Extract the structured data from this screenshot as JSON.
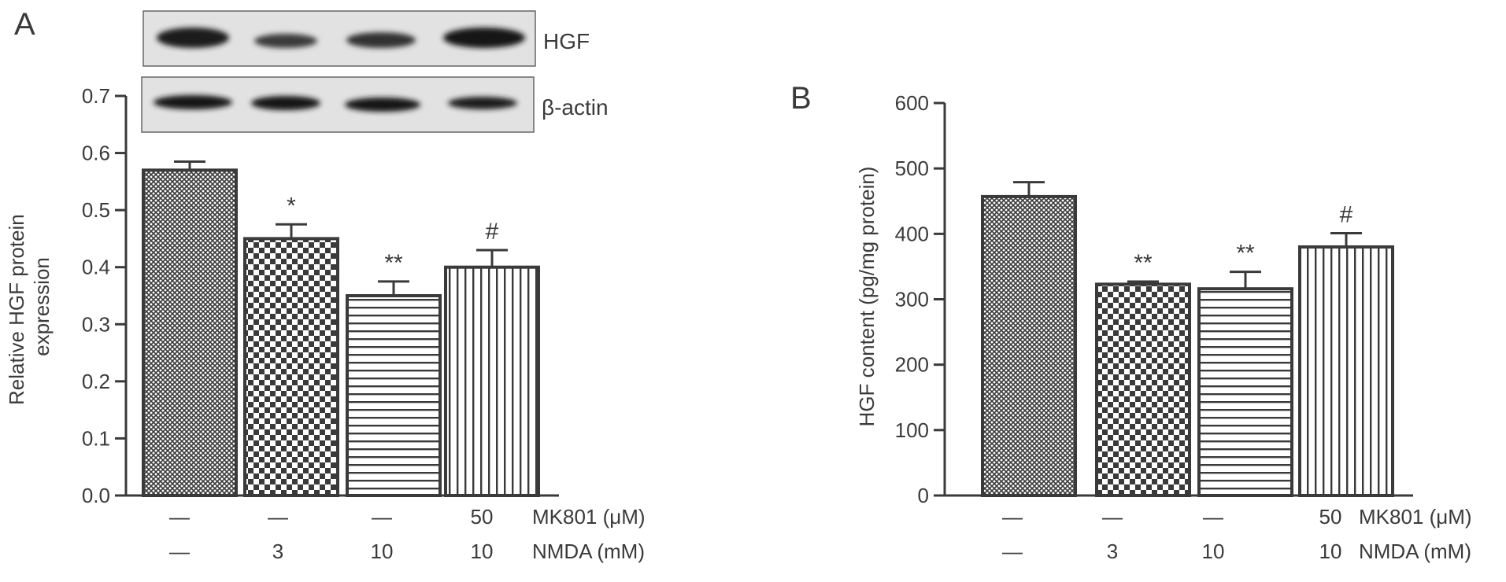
{
  "chart_data": [
    {
      "panel": "A",
      "type": "bar",
      "ylabel_lines": [
        "Relative HGF protein",
        "expression"
      ],
      "ylim": [
        0,
        0.7
      ],
      "yticks": [
        0.0,
        0.1,
        0.2,
        0.3,
        0.4,
        0.5,
        0.6,
        0.7
      ],
      "ytick_labels": [
        "0.0",
        "0.1",
        "0.2",
        "0.3",
        "0.4",
        "0.5",
        "0.6",
        "0.7"
      ],
      "values": [
        0.57,
        0.45,
        0.35,
        0.4
      ],
      "errors": [
        0.015,
        0.025,
        0.025,
        0.03
      ],
      "significance": [
        "",
        "*",
        "**",
        "#"
      ],
      "fills": [
        "dense-crosshatch",
        "checker",
        "horizontal-lines",
        "vertical-lines"
      ],
      "conditions": {
        "row1": {
          "name": "MK801 (μM)",
          "values": [
            "—",
            "—",
            "—",
            "50"
          ]
        },
        "row2": {
          "name": "NMDA (mM)",
          "values": [
            "—",
            "3",
            "10",
            "10"
          ]
        }
      },
      "blot_labels": [
        "HGF",
        "β-actin"
      ]
    },
    {
      "panel": "B",
      "type": "bar",
      "ylabel": "HGF content (pg/mg protein)",
      "ylim": [
        0,
        600
      ],
      "yticks": [
        0,
        100,
        200,
        300,
        400,
        500,
        600
      ],
      "ytick_labels": [
        "0",
        "100",
        "200",
        "300",
        "400",
        "500",
        "600"
      ],
      "values": [
        457,
        323,
        316,
        380
      ],
      "errors": [
        22,
        4,
        26,
        21
      ],
      "significance": [
        "",
        "**",
        "**",
        "#"
      ],
      "fills": [
        "dense-crosshatch",
        "checker",
        "horizontal-lines",
        "vertical-lines"
      ],
      "conditions": {
        "row1": {
          "name": "MK801 (μM)",
          "values": [
            "—",
            "—",
            "—",
            "50"
          ]
        },
        "row2": {
          "name": "NMDA (mM)",
          "values": [
            "—",
            "3",
            "10",
            "10"
          ]
        }
      }
    }
  ]
}
